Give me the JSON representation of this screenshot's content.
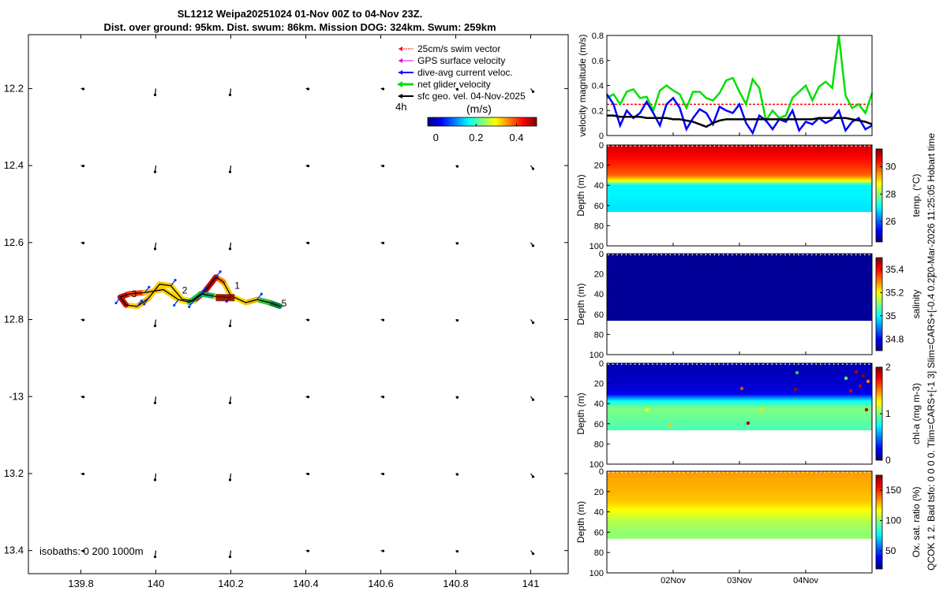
{
  "title_line1": "SL1212 Weipa20251024 01-Nov 00Z to 04-Nov 23Z.",
  "title_line2": "Dist. over ground: 95km. Dist. swum: 86km. Mission DOG: 324km. Swum: 259km",
  "side_label_1": "20-Mar-2026 11:25:05 Hobart time",
  "side_label_2": "QCOK 1  2. Bad tsfo: 0  0  0  0. Tlim=CARS+[-1 3] Slim=CARS+[-0.4 0.2]",
  "colors": {
    "swim": "#ff0000",
    "gps": "#e000e0",
    "dive": "#0000ff",
    "net": "#00e000",
    "sfc": "#000000"
  },
  "chart_data": [
    {
      "id": "map",
      "type": "scatter",
      "title": "SL1212 Weipa20251024 01-Nov 00Z to 04-Nov 23Z.",
      "xlim": [
        139.66,
        141.1
      ],
      "ylim": [
        -13.46,
        -12.06
      ],
      "xticks": [
        139.8,
        140,
        140.2,
        140.4,
        140.6,
        140.8,
        141
      ],
      "xticklabels": [
        "139.8",
        "140",
        "140.2",
        "140.4",
        "140.6",
        "140.8",
        "141"
      ],
      "yticks": [
        -12.2,
        -12.4,
        -12.6,
        -12.8,
        -13,
        -13.2,
        -13.4
      ],
      "yticklabels": [
        "12.2",
        "12.4",
        "12.6",
        "12.8",
        "-13",
        "13.2",
        "13.4"
      ],
      "legend": {
        "position": "top-right",
        "entries": [
          "25cm/s swim vector",
          "GPS surface velocity",
          "dive-avg current veloc.",
          "net glider velocity",
          "sfc geo. vel. 04-Nov-2025"
        ]
      },
      "interval_label": "4h",
      "colorbar": {
        "label": "(m/s)",
        "ticks": [
          0,
          0.2,
          0.4
        ],
        "ticklabels": [
          "0",
          "0.2",
          "0.4"
        ],
        "range": [
          -0.04,
          0.5
        ]
      },
      "isobaths_text": "isobaths: 0   200  1000m",
      "track": [
        [
          140.33,
          -12.765
        ],
        [
          140.3,
          -12.755
        ],
        [
          140.27,
          -12.748
        ],
        [
          140.24,
          -12.756
        ],
        [
          140.22,
          -12.747
        ],
        [
          140.2,
          -12.738
        ],
        [
          140.18,
          -12.702
        ],
        [
          140.16,
          -12.69
        ],
        [
          140.13,
          -12.728
        ],
        [
          140.1,
          -12.752
        ],
        [
          140.07,
          -12.747
        ],
        [
          140.04,
          -12.712
        ],
        [
          140.01,
          -12.708
        ],
        [
          139.98,
          -12.745
        ],
        [
          139.95,
          -12.766
        ],
        [
          139.92,
          -12.762
        ],
        [
          139.905,
          -12.742
        ],
        [
          139.93,
          -12.733
        ],
        [
          139.97,
          -12.73
        ],
        [
          140.02,
          -12.722
        ],
        [
          140.06,
          -12.748
        ],
        [
          140.09,
          -12.755
        ],
        [
          140.12,
          -12.733
        ],
        [
          140.16,
          -12.74
        ],
        [
          140.2,
          -12.743
        ]
      ],
      "day_labels": [
        {
          "text": "1",
          "lon": 140.21,
          "lat": -12.712
        },
        {
          "text": "2",
          "lon": 140.07,
          "lat": -12.724
        },
        {
          "text": "3",
          "lon": 139.935,
          "lat": -12.733
        },
        {
          "text": "5",
          "lon": 140.335,
          "lat": -12.758
        }
      ],
      "sfc_vectors": {
        "lons": [
          139.8,
          140,
          140.2,
          140.4,
          140.6,
          140.8,
          141
        ],
        "lats": [
          -12.2,
          -12.4,
          -12.6,
          -12.8,
          -13,
          -13.2,
          -13.4
        ]
      }
    },
    {
      "id": "velocity",
      "type": "line",
      "ylabel": "velocity magnitude (m/s)",
      "xlim": [
        0,
        4
      ],
      "ylim": [
        0,
        0.8
      ],
      "yticks": [
        0,
        0.2,
        0.4,
        0.6,
        0.8
      ],
      "yticklabels": [
        "0",
        "0.2",
        "0.4",
        "0.6",
        "0.8"
      ],
      "x": [
        0,
        0.1,
        0.2,
        0.3,
        0.4,
        0.5,
        0.6,
        0.7,
        0.8,
        0.9,
        1,
        1.1,
        1.2,
        1.3,
        1.4,
        1.5,
        1.6,
        1.7,
        1.8,
        1.9,
        2,
        2.1,
        2.2,
        2.3,
        2.4,
        2.5,
        2.6,
        2.7,
        2.8,
        2.9,
        3,
        3.1,
        3.2,
        3.3,
        3.4,
        3.5,
        3.6,
        3.7,
        3.8,
        3.9,
        4
      ],
      "series": [
        {
          "name": "25cm/s swim vector",
          "values": [
            0.25,
            0.25,
            0.25,
            0.25,
            0.25,
            0.25,
            0.25,
            0.25,
            0.25,
            0.25,
            0.25,
            0.25,
            0.25,
            0.25,
            0.25,
            0.25,
            0.25,
            0.25,
            0.25,
            0.25,
            0.25,
            0.25,
            0.25,
            0.25,
            0.25,
            0.25,
            0.25,
            0.25,
            0.25,
            0.25,
            0.25,
            0.25,
            0.25,
            0.25,
            0.25,
            0.25,
            0.25,
            0.25,
            0.25,
            0.25,
            0.25
          ]
        },
        {
          "name": "net glider velocity",
          "values": [
            0.3,
            0.33,
            0.25,
            0.35,
            0.37,
            0.3,
            0.31,
            0.2,
            0.36,
            0.4,
            0.36,
            0.33,
            0.22,
            0.35,
            0.35,
            0.3,
            0.28,
            0.34,
            0.44,
            0.46,
            0.35,
            0.25,
            0.45,
            0.38,
            0.12,
            0.2,
            0.14,
            0.16,
            0.3,
            0.35,
            0.4,
            0.28,
            0.39,
            0.43,
            0.38,
            0.8,
            0.32,
            0.22,
            0.25,
            0.18,
            0.34
          ]
        },
        {
          "name": "dive-avg current veloc.",
          "values": [
            0.33,
            0.25,
            0.08,
            0.2,
            0.14,
            0.18,
            0.27,
            0.18,
            0.08,
            0.25,
            0.3,
            0.22,
            0.05,
            0.14,
            0.21,
            0.18,
            0.09,
            0.23,
            0.2,
            0.18,
            0.25,
            0.1,
            0.02,
            0.16,
            0.12,
            0.05,
            0.13,
            0.11,
            0.2,
            0.04,
            0.11,
            0.09,
            0.14,
            0.1,
            0.13,
            0.2,
            0.04,
            0.11,
            0.14,
            0.05,
            0.08
          ]
        },
        {
          "name": "sfc geo. vel. 04-Nov-2025",
          "values": [
            0.16,
            0.16,
            0.15,
            0.15,
            0.15,
            0.15,
            0.14,
            0.14,
            0.14,
            0.14,
            0.13,
            0.13,
            0.12,
            0.11,
            0.09,
            0.07,
            0.1,
            0.12,
            0.13,
            0.13,
            0.13,
            0.13,
            0.13,
            0.13,
            0.13,
            0.13,
            0.13,
            0.13,
            0.13,
            0.13,
            0.13,
            0.13,
            0.14,
            0.14,
            0.14,
            0.14,
            0.14,
            0.13,
            0.12,
            0.11,
            0.09
          ]
        }
      ]
    },
    {
      "id": "temperature",
      "type": "heatmap",
      "ylabel": "Depth (m)",
      "clabel": "temp. (°C)",
      "ylim": [
        0,
        100
      ],
      "yticks": [
        0,
        20,
        40,
        60,
        80,
        100
      ],
      "clim": [
        24.5,
        31.3
      ],
      "cticks": [
        26,
        28,
        30
      ],
      "depths": [
        0,
        10,
        20,
        30,
        35,
        40,
        50,
        60,
        65
      ],
      "values": [
        30.8,
        30.5,
        30.2,
        29.8,
        28.8,
        27.0,
        27.0,
        26.9,
        26.9
      ]
    },
    {
      "id": "salinity",
      "type": "heatmap",
      "ylabel": "Depth (m)",
      "clabel": "salinity",
      "ylim": [
        0,
        100
      ],
      "yticks": [
        0,
        20,
        40,
        60,
        80,
        100
      ],
      "clim": [
        34.7,
        35.5
      ],
      "cticks": [
        34.8,
        35,
        35.2,
        35.4
      ],
      "depths": [
        0,
        10,
        20,
        30,
        40,
        50,
        60,
        65
      ],
      "values": [
        34.72,
        34.72,
        34.72,
        34.72,
        34.72,
        34.72,
        34.72,
        34.72
      ]
    },
    {
      "id": "chla",
      "type": "heatmap",
      "ylabel": "Depth (m)",
      "clabel": "chl-a (mg m-3)",
      "ylim": [
        0,
        100
      ],
      "yticks": [
        0,
        20,
        40,
        60,
        80,
        100
      ],
      "clim": [
        0,
        2
      ],
      "cticks": [
        0,
        1,
        2
      ],
      "depths": [
        0,
        10,
        20,
        30,
        38,
        45,
        55,
        65
      ],
      "values": [
        0.1,
        0.12,
        0.15,
        0.2,
        0.8,
        1.0,
        0.95,
        0.9
      ]
    },
    {
      "id": "oxygen",
      "type": "heatmap",
      "ylabel": "Depth (m)",
      "clabel": "Ox. sat. ratio (%)",
      "ylim": [
        0,
        100
      ],
      "yticks": [
        0,
        20,
        40,
        60,
        80,
        100
      ],
      "clim": [
        20,
        175
      ],
      "cticks": [
        50,
        100,
        150
      ],
      "xticks": [
        1,
        2,
        3
      ],
      "xticklabels": [
        "02Nov",
        "03Nov",
        "04Nov"
      ],
      "depths": [
        0,
        10,
        20,
        30,
        40,
        50,
        60,
        65
      ],
      "values": [
        132,
        130,
        128,
        125,
        115,
        105,
        100,
        100
      ]
    }
  ]
}
